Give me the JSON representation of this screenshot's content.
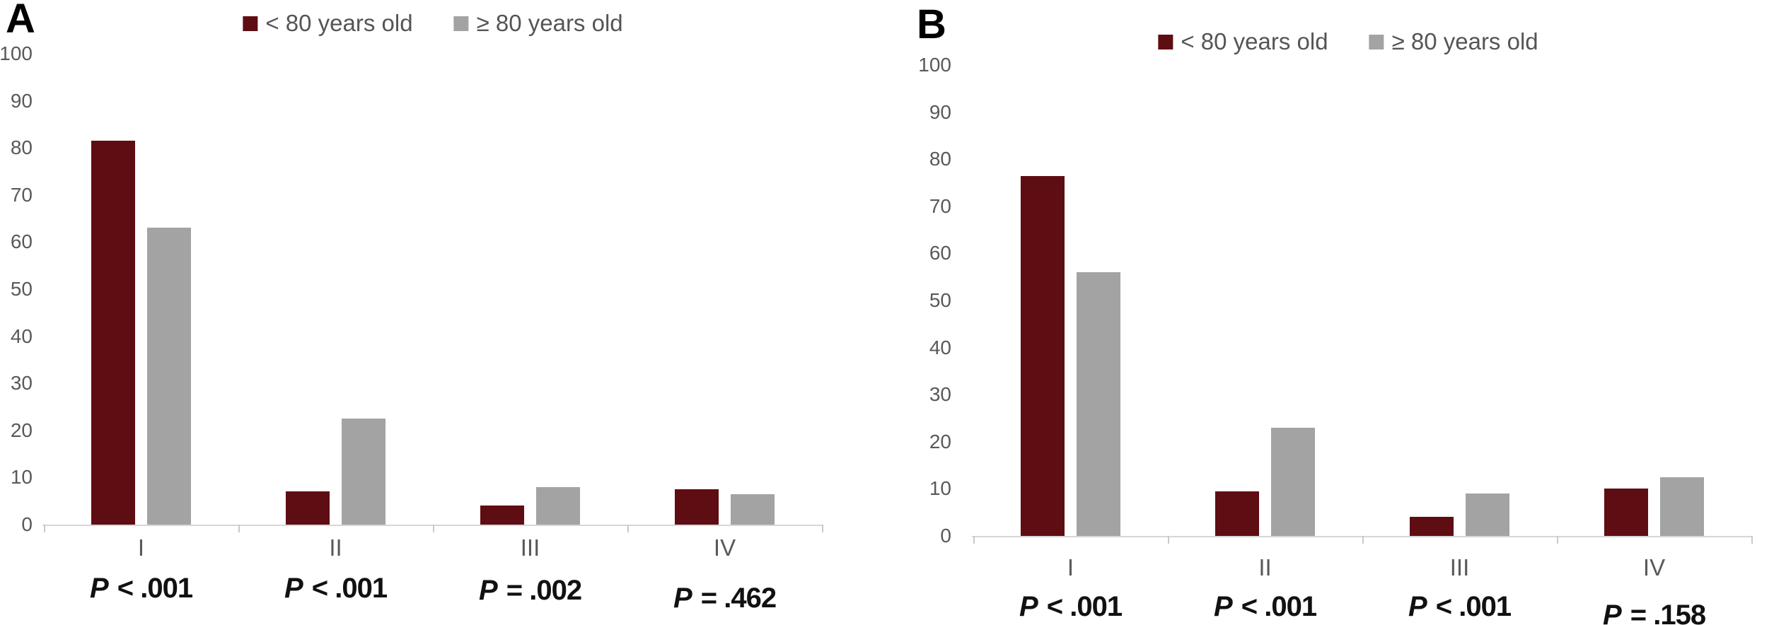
{
  "figure": {
    "background": "#ffffff"
  },
  "chart_data": [
    {
      "type": "bar",
      "panel_label": "A",
      "title": "",
      "xlabel": "",
      "ylabel": "",
      "categories": [
        "I",
        "II",
        "III",
        "IV"
      ],
      "series": [
        {
          "name": "< 80 years old",
          "color": "#5e0d13",
          "values": [
            81.5,
            7,
            4,
            7.5
          ]
        },
        {
          "name": "≥ 80 years old",
          "color": "#a3a3a3",
          "values": [
            63,
            22.5,
            8,
            6.5
          ]
        }
      ],
      "p_values": [
        "P < .001",
        "P < .001",
        "P = .002",
        "P = .462"
      ],
      "ylim": [
        0,
        100
      ],
      "yticks": [
        0,
        10,
        20,
        30,
        40,
        50,
        60,
        70,
        80,
        90,
        100
      ],
      "grid": false,
      "legend_position": "top-center"
    },
    {
      "type": "bar",
      "panel_label": "B",
      "title": "",
      "xlabel": "",
      "ylabel": "",
      "categories": [
        "I",
        "II",
        "III",
        "IV"
      ],
      "series": [
        {
          "name": "< 80 years old",
          "color": "#5e0d13",
          "values": [
            76.5,
            9.5,
            4,
            10
          ]
        },
        {
          "name": "≥ 80 years old",
          "color": "#a3a3a3",
          "values": [
            56,
            23,
            9,
            12.5
          ]
        }
      ],
      "p_values": [
        "P < .001",
        "P < .001",
        "P < .001",
        "P = .158"
      ],
      "ylim": [
        0,
        100
      ],
      "yticks": [
        0,
        10,
        20,
        30,
        40,
        50,
        60,
        70,
        80,
        90,
        100
      ],
      "grid": false,
      "legend_position": "top-center"
    }
  ]
}
